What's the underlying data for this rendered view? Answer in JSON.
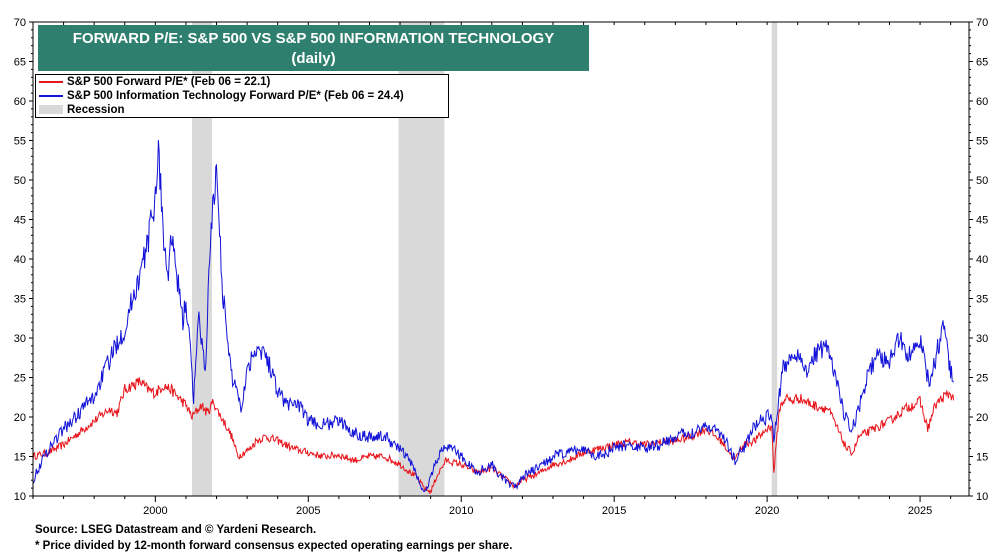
{
  "chart_data": {
    "type": "line",
    "title": "FORWARD P/E: S&P 500 VS S&P 500 INFORMATION TECHNOLOGY",
    "subtitle": "(daily)",
    "xlabel": "",
    "ylabel": "",
    "xlim": [
      1996.0,
      2026.6
    ],
    "ylim": [
      10,
      70
    ],
    "x_ticks": [
      2000,
      2005,
      2010,
      2015,
      2020,
      2025
    ],
    "y_ticks": [
      10,
      15,
      20,
      25,
      30,
      35,
      40,
      45,
      50,
      55,
      60,
      65,
      70
    ],
    "y_axis_both_sides": true,
    "grid": false,
    "legend_position": "top-left",
    "legend": [
      "S&P 500 Forward P/E* (Feb 06 = 22.1)",
      "S&P 500 Information Technology Forward P/E* (Feb 06 = 24.4)",
      "Recession"
    ],
    "recessions": [
      [
        2001.2,
        2001.85
      ],
      [
        2007.95,
        2009.45
      ],
      [
        2020.15,
        2020.33
      ]
    ],
    "series": [
      {
        "name": "S&P 500 Forward P/E* (Feb 06 = 22.1)",
        "color": "#e8141b",
        "x": [
          1996.0,
          1996.5,
          1997.0,
          1997.5,
          1998.0,
          1998.5,
          1998.75,
          1999.0,
          1999.25,
          1999.5,
          1999.75,
          2000.0,
          2000.25,
          2000.5,
          2000.75,
          2001.0,
          2001.2,
          2001.5,
          2001.7,
          2001.9,
          2002.0,
          2002.3,
          2002.5,
          2002.7,
          2002.9,
          2003.1,
          2003.3,
          2003.6,
          2004.0,
          2004.5,
          2005.0,
          2005.5,
          2006.0,
          2006.5,
          2007.0,
          2007.5,
          2008.0,
          2008.5,
          2008.8,
          2009.0,
          2009.2,
          2009.5,
          2010.0,
          2010.5,
          2011.0,
          2011.5,
          2011.75,
          2012.0,
          2012.5,
          2013.0,
          2013.5,
          2014.0,
          2014.5,
          2015.0,
          2015.5,
          2016.0,
          2016.5,
          2017.0,
          2017.5,
          2018.0,
          2018.5,
          2018.95,
          2019.2,
          2019.6,
          2020.0,
          2020.15,
          2020.22,
          2020.4,
          2020.6,
          2020.8,
          2021.0,
          2021.5,
          2022.0,
          2022.3,
          2022.6,
          2022.8,
          2023.0,
          2023.5,
          2024.0,
          2024.5,
          2025.0,
          2025.25,
          2025.5,
          2025.75,
          2026.0,
          2026.1
        ],
        "values": [
          15.0,
          15.5,
          16.5,
          18.0,
          19.5,
          21.0,
          20.5,
          23.5,
          24.0,
          24.5,
          23.5,
          23.0,
          24.0,
          23.5,
          22.5,
          21.5,
          20.0,
          21.5,
          20.5,
          22.0,
          21.0,
          19.0,
          17.5,
          15.0,
          15.5,
          16.0,
          17.0,
          17.5,
          17.0,
          16.0,
          15.5,
          15.0,
          15.2,
          14.5,
          15.0,
          15.0,
          14.0,
          12.5,
          11.0,
          10.5,
          12.5,
          14.5,
          14.0,
          13.0,
          13.5,
          12.0,
          11.2,
          12.0,
          12.8,
          14.0,
          14.5,
          15.5,
          16.0,
          16.5,
          16.8,
          16.5,
          16.8,
          17.0,
          17.5,
          18.5,
          17.0,
          14.5,
          16.5,
          17.0,
          18.5,
          19.0,
          13.0,
          21.0,
          22.5,
          22.0,
          22.5,
          21.5,
          21.0,
          18.5,
          16.0,
          15.5,
          17.5,
          18.5,
          19.5,
          21.0,
          22.0,
          18.5,
          21.5,
          22.5,
          23.0,
          22.1
        ]
      },
      {
        "name": "S&P 500 Information Technology Forward P/E* (Feb 06 = 24.4)",
        "color": "#1212d8",
        "x": [
          1996.0,
          1996.3,
          1996.6,
          1997.0,
          1997.4,
          1997.7,
          1998.0,
          1998.3,
          1998.6,
          1998.8,
          1999.0,
          1999.25,
          1999.5,
          1999.75,
          2000.0,
          2000.1,
          2000.25,
          2000.4,
          2000.5,
          2000.7,
          2000.9,
          2001.0,
          2001.15,
          2001.25,
          2001.4,
          2001.5,
          2001.65,
          2001.75,
          2001.9,
          2002.0,
          2002.1,
          2002.2,
          2002.35,
          2002.5,
          2002.65,
          2002.8,
          2003.0,
          2003.3,
          2003.6,
          2004.0,
          2004.3,
          2004.6,
          2005.0,
          2005.5,
          2006.0,
          2006.5,
          2007.0,
          2007.5,
          2008.0,
          2008.4,
          2008.7,
          2008.85,
          2009.0,
          2009.3,
          2009.6,
          2010.0,
          2010.5,
          2011.0,
          2011.4,
          2011.75,
          2012.0,
          2012.5,
          2013.0,
          2013.5,
          2014.0,
          2014.5,
          2015.0,
          2015.5,
          2016.0,
          2016.5,
          2017.0,
          2017.5,
          2018.0,
          2018.5,
          2018.95,
          2019.3,
          2019.6,
          2020.0,
          2020.15,
          2020.22,
          2020.35,
          2020.5,
          2020.75,
          2021.0,
          2021.3,
          2021.6,
          2021.9,
          2022.2,
          2022.5,
          2022.75,
          2023.0,
          2023.3,
          2023.6,
          2024.0,
          2024.3,
          2024.6,
          2024.9,
          2025.1,
          2025.2,
          2025.35,
          2025.6,
          2025.8,
          2025.9,
          2026.0,
          2026.1
        ],
        "values": [
          12.0,
          14.5,
          16.5,
          18.5,
          20.0,
          21.5,
          22.5,
          25.5,
          28.0,
          30.0,
          31.0,
          35.0,
          38.0,
          42.0,
          48.0,
          54.0,
          44.0,
          37.0,
          43.0,
          38.0,
          32.0,
          35.0,
          28.0,
          22.0,
          33.0,
          30.0,
          26.0,
          38.0,
          48.0,
          51.0,
          44.0,
          36.0,
          30.0,
          25.0,
          24.0,
          21.0,
          26.0,
          29.0,
          28.0,
          23.5,
          21.5,
          22.0,
          19.5,
          19.0,
          19.5,
          18.0,
          17.5,
          17.5,
          16.0,
          14.0,
          11.0,
          10.5,
          12.5,
          15.5,
          16.5,
          15.0,
          13.0,
          14.0,
          12.0,
          11.0,
          12.5,
          13.5,
          15.0,
          15.5,
          16.0,
          15.0,
          16.0,
          16.5,
          16.0,
          16.5,
          17.5,
          18.0,
          19.0,
          18.0,
          14.5,
          16.5,
          19.0,
          20.0,
          20.5,
          17.0,
          21.0,
          26.0,
          27.5,
          28.0,
          26.0,
          28.0,
          29.0,
          26.0,
          20.5,
          18.0,
          21.0,
          25.5,
          27.5,
          27.0,
          30.0,
          28.0,
          29.0,
          29.5,
          25.0,
          25.0,
          29.0,
          32.0,
          28.0,
          26.0,
          24.4
        ]
      }
    ]
  },
  "footnotes": {
    "source": "Source: LSEG Datastream and © Yardeni Research.",
    "note": "* Price divided by 12-month forward consensus expected operating earnings per share."
  }
}
